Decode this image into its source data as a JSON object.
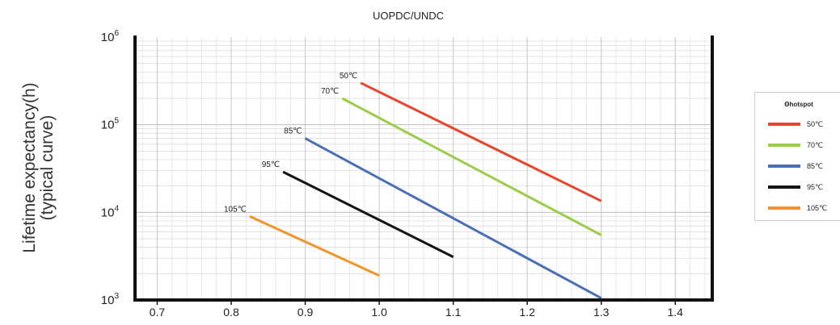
{
  "chart_data": {
    "type": "line",
    "title": "UOPDC/UNDC",
    "xlabel": "",
    "ylabel": "Lifetime expectancy(h)\n(typical curve)",
    "ylabel_lines": [
      "Lifetime expectancy(h)",
      "(typical curve)"
    ],
    "xlim": [
      0.67,
      1.45
    ],
    "ylim": [
      1000,
      1000000
    ],
    "yscale": "log",
    "grid": true,
    "x_ticks": [
      "0.7",
      "0.8",
      "0.9",
      "1.0",
      "1.1",
      "1.2",
      "1.3",
      "1.4"
    ],
    "y_ticks": [
      {
        "base": "10",
        "exp": "3"
      },
      {
        "base": "10",
        "exp": "4"
      },
      {
        "base": "10",
        "exp": "5"
      },
      {
        "base": "10",
        "exp": "6"
      }
    ],
    "legend_title": "Θhotspot",
    "legend_position": "right",
    "series": [
      {
        "name": "50℃",
        "color": "#e8452c",
        "x": [
          0.975,
          1.3
        ],
        "y": [
          300000,
          13500
        ]
      },
      {
        "name": "70℃",
        "color": "#9bcc4a",
        "x": [
          0.95,
          1.3
        ],
        "y": [
          200000,
          5500
        ]
      },
      {
        "name": "85℃",
        "color": "#4a6fb8",
        "x": [
          0.9,
          1.3
        ],
        "y": [
          70000,
          1050
        ]
      },
      {
        "name": "95℃",
        "color": "#141414",
        "x": [
          0.87,
          1.1
        ],
        "y": [
          29000,
          3100
        ]
      },
      {
        "name": "105℃",
        "color": "#f0952e",
        "x": [
          0.825,
          1.0
        ],
        "y": [
          9000,
          1900
        ]
      }
    ]
  }
}
